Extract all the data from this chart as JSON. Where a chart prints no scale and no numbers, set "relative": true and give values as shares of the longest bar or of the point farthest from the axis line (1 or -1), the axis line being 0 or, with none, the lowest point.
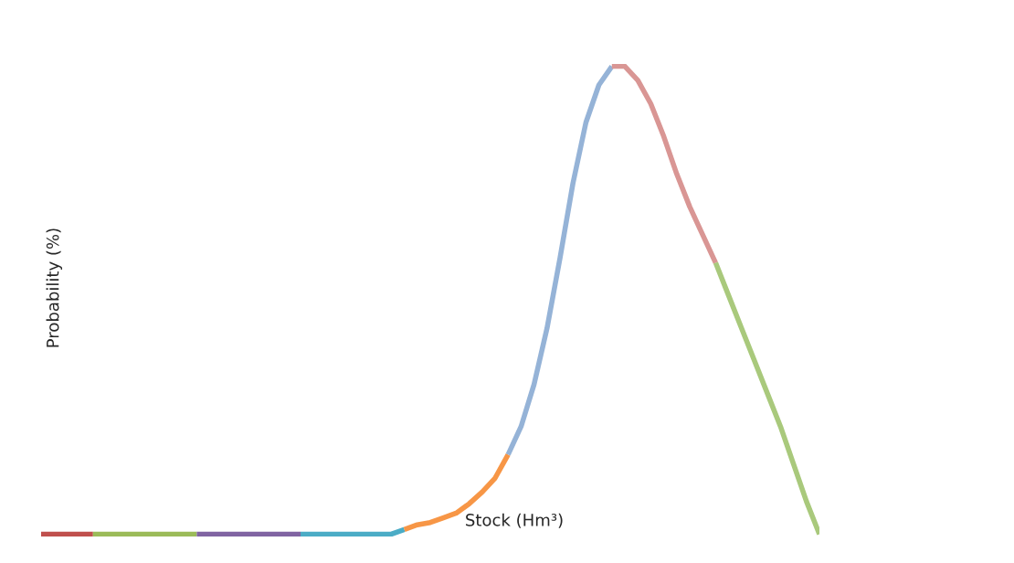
{
  "chart_data": {
    "type": "line",
    "xlabel": "Stock (Hm³)",
    "ylabel": "Probability (%)",
    "relative": true,
    "categories": [
      null,
      null,
      null,
      null,
      null,
      null,
      null,
      null,
      null,
      null,
      null,
      null,
      null,
      null,
      null,
      null,
      null,
      null,
      null,
      null,
      null,
      null,
      null,
      null,
      null,
      null,
      null,
      null,
      null,
      null,
      null,
      null,
      null,
      null,
      null,
      null,
      null,
      null,
      null,
      null,
      null,
      null,
      null,
      null,
      null,
      null,
      null,
      null,
      null,
      null,
      null,
      null,
      null,
      null,
      null,
      null,
      null,
      null,
      null,
      null,
      null
    ],
    "series": [
      {
        "color": "#c0504d",
        "values": [
          0,
          0,
          0,
          0,
          0,
          null,
          null,
          null,
          null,
          null,
          null,
          null,
          null,
          null,
          null,
          null,
          null,
          null,
          null,
          null,
          null,
          null,
          null,
          null,
          null,
          null,
          null,
          null,
          null,
          null,
          null,
          null,
          null,
          null,
          null,
          null,
          null,
          null,
          null,
          null,
          null,
          null,
          null,
          null,
          null,
          null,
          null,
          null,
          null,
          null,
          null,
          null,
          null,
          null,
          null,
          null,
          null,
          null,
          null,
          null,
          null
        ]
      },
      {
        "color": "#9bbb59",
        "values": [
          null,
          null,
          null,
          null,
          0,
          0,
          0,
          0,
          0,
          0,
          0,
          0,
          0,
          null,
          null,
          null,
          null,
          null,
          null,
          null,
          null,
          null,
          null,
          null,
          null,
          null,
          null,
          null,
          null,
          null,
          null,
          null,
          null,
          null,
          null,
          null,
          null,
          null,
          null,
          null,
          null,
          null,
          null,
          null,
          null,
          null,
          null,
          null,
          null,
          null,
          null,
          null,
          null,
          null,
          null,
          null,
          null,
          null,
          null,
          null,
          null
        ]
      },
      {
        "color": "#8064a2",
        "values": [
          null,
          null,
          null,
          null,
          null,
          null,
          null,
          null,
          null,
          null,
          null,
          null,
          0,
          0,
          0,
          0,
          0,
          0,
          0,
          0,
          0,
          null,
          null,
          null,
          null,
          null,
          null,
          null,
          null,
          null,
          null,
          null,
          null,
          null,
          null,
          null,
          null,
          null,
          null,
          null,
          null,
          null,
          null,
          null,
          null,
          null,
          null,
          null,
          null,
          null,
          null,
          null,
          null,
          null,
          null,
          null,
          null,
          null,
          null,
          null,
          null
        ]
      },
      {
        "color": "#4bacc6",
        "values": [
          null,
          null,
          null,
          null,
          null,
          null,
          null,
          null,
          null,
          null,
          null,
          null,
          null,
          null,
          null,
          null,
          null,
          null,
          null,
          null,
          0,
          0,
          0,
          0,
          0,
          0,
          0,
          0,
          0.01,
          null,
          null,
          null,
          null,
          null,
          null,
          null,
          null,
          null,
          null,
          null,
          null,
          null,
          null,
          null,
          null,
          null,
          null,
          null,
          null,
          null,
          null,
          null,
          null,
          null,
          null,
          null,
          null,
          null,
          null,
          null,
          null
        ]
      },
      {
        "color": "#f79646",
        "values": [
          null,
          null,
          null,
          null,
          null,
          null,
          null,
          null,
          null,
          null,
          null,
          null,
          null,
          null,
          null,
          null,
          null,
          null,
          null,
          null,
          null,
          null,
          null,
          null,
          null,
          null,
          null,
          null,
          0.01,
          0.02,
          0.025,
          0.035,
          0.045,
          0.065,
          0.09,
          0.12,
          0.17,
          null,
          null,
          null,
          null,
          null,
          null,
          null,
          null,
          null,
          null,
          null,
          null,
          null,
          null,
          null,
          null,
          null,
          null,
          null,
          null,
          null,
          null,
          null,
          null
        ]
      },
      {
        "color": "#95b3d7",
        "values": [
          null,
          null,
          null,
          null,
          null,
          null,
          null,
          null,
          null,
          null,
          null,
          null,
          null,
          null,
          null,
          null,
          null,
          null,
          null,
          null,
          null,
          null,
          null,
          null,
          null,
          null,
          null,
          null,
          null,
          null,
          null,
          null,
          null,
          null,
          null,
          null,
          0.17,
          0.23,
          0.32,
          0.44,
          0.59,
          0.75,
          0.88,
          0.96,
          1.0,
          null,
          null,
          null,
          null,
          null,
          null,
          null,
          null,
          null,
          null,
          null,
          null,
          null,
          null,
          null,
          null
        ]
      },
      {
        "color": "#d99694",
        "values": [
          null,
          null,
          null,
          null,
          null,
          null,
          null,
          null,
          null,
          null,
          null,
          null,
          null,
          null,
          null,
          null,
          null,
          null,
          null,
          null,
          null,
          null,
          null,
          null,
          null,
          null,
          null,
          null,
          null,
          null,
          null,
          null,
          null,
          null,
          null,
          null,
          null,
          null,
          null,
          null,
          null,
          null,
          null,
          null,
          1.0,
          1.0,
          0.97,
          0.92,
          0.85,
          0.77,
          0.7,
          0.64,
          0.58,
          null,
          null,
          null,
          null,
          null,
          null,
          null,
          null
        ]
      },
      {
        "color": "#a9c97c",
        "values": [
          null,
          null,
          null,
          null,
          null,
          null,
          null,
          null,
          null,
          null,
          null,
          null,
          null,
          null,
          null,
          null,
          null,
          null,
          null,
          null,
          null,
          null,
          null,
          null,
          null,
          null,
          null,
          null,
          null,
          null,
          null,
          null,
          null,
          null,
          null,
          null,
          null,
          null,
          null,
          null,
          null,
          null,
          null,
          null,
          null,
          null,
          null,
          null,
          null,
          null,
          null,
          null,
          0.58,
          0.51,
          0.44,
          0.37,
          0.3,
          0.23,
          0.15,
          0.07,
          0
        ]
      }
    ]
  }
}
